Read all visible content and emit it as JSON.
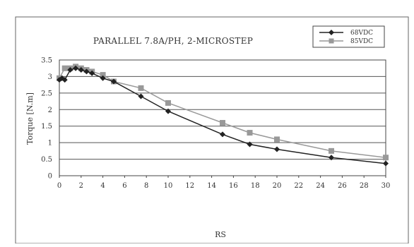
{
  "chart_data": {
    "type": "line",
    "title": "PARALLEL 7.8A/PH, 2-MICROSTEP",
    "xlabel": "RS",
    "ylabel": "Torque [N.m]",
    "xlim": [
      0,
      30
    ],
    "ylim": [
      0,
      3.5
    ],
    "x_ticks": [
      "0",
      "2",
      "4",
      "6",
      "8",
      "10",
      "12",
      "14",
      "16",
      "18",
      "20",
      "22",
      "24",
      "26",
      "28",
      "30"
    ],
    "y_ticks": [
      "0",
      "0.5",
      "1",
      "1.5",
      "2",
      "2.5",
      "3",
      "3.5"
    ],
    "grid": "horizontal",
    "legend_position": "top-right",
    "series": [
      {
        "name": "68VDC",
        "color": "#222222",
        "marker": "diamond",
        "x": [
          0,
          0.25,
          0.5,
          1,
          1.5,
          2,
          2.5,
          3,
          4,
          5,
          7.5,
          10,
          15,
          17.5,
          20,
          25,
          30
        ],
        "y": [
          2.9,
          2.95,
          2.9,
          3.2,
          3.25,
          3.2,
          3.15,
          3.1,
          2.95,
          2.85,
          2.4,
          1.95,
          1.25,
          0.95,
          0.8,
          0.55,
          0.37
        ]
      },
      {
        "name": "85VDC",
        "color": "#999999",
        "marker": "square",
        "x": [
          0,
          0.5,
          1,
          1.5,
          2,
          2.5,
          3,
          4,
          5,
          7.5,
          10,
          15,
          17.5,
          20,
          25,
          30
        ],
        "y": [
          2.95,
          3.25,
          3.25,
          3.3,
          3.25,
          3.2,
          3.15,
          3.05,
          2.85,
          2.65,
          2.2,
          1.6,
          1.3,
          1.1,
          0.75,
          0.55
        ]
      }
    ]
  }
}
